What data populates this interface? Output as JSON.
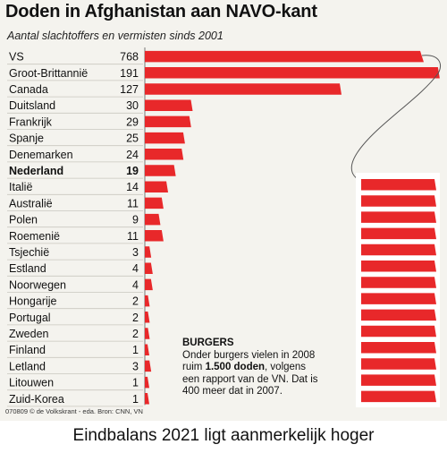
{
  "header": {
    "title": "Doden in Afghanistan aan NAVO-kant",
    "subtitle": "Aantal slachtoffers en vermisten sinds 2001"
  },
  "chart_data": {
    "type": "bar",
    "orientation": "horizontal",
    "title": "Doden in Afghanistan aan NAVO-kant",
    "subtitle": "Aantal slachtoffers en vermisten sinds 2001",
    "categories": [
      "VS",
      "Groot-Brittannië",
      "Canada",
      "Duitsland",
      "Frankrijk",
      "Spanje",
      "Denemarken",
      "Nederland",
      "Italië",
      "Australië",
      "Polen",
      "Roemenië",
      "Tsjechië",
      "Estland",
      "Noorwegen",
      "Hongarije",
      "Portugal",
      "Zweden",
      "Finland",
      "Letland",
      "Litouwen",
      "Zuid-Korea"
    ],
    "values": [
      768,
      191,
      127,
      30,
      29,
      25,
      24,
      19,
      14,
      11,
      9,
      11,
      3,
      4,
      4,
      2,
      2,
      2,
      1,
      3,
      1,
      1
    ],
    "value_labels": [
      "768",
      "191",
      "127",
      "30",
      "29",
      "25",
      "24",
      "19",
      "14",
      "11",
      "9",
      "11",
      "3",
      "4",
      "4",
      "2",
      "2",
      "2",
      "1",
      "3",
      "1",
      "1"
    ],
    "highlight": "Nederland",
    "bar_color": "#e8282a",
    "broken_bar": "VS",
    "grid": false,
    "legend": "none"
  },
  "note": {
    "heading": "BURGERS",
    "line1": "Onder burgers vielen in 2008",
    "line2_pre": "ruim ",
    "line2_bold": "1.500 doden",
    "line2_post": ", volgens",
    "line3": "een rapport van de VN. Dat is",
    "line4": "400 meer dat in 2007."
  },
  "source": "070809 © de Volkskrant - eda. Bron: CNN, VN",
  "caption": "Eindbalans 2021 ligt aanmerkelijk hoger"
}
